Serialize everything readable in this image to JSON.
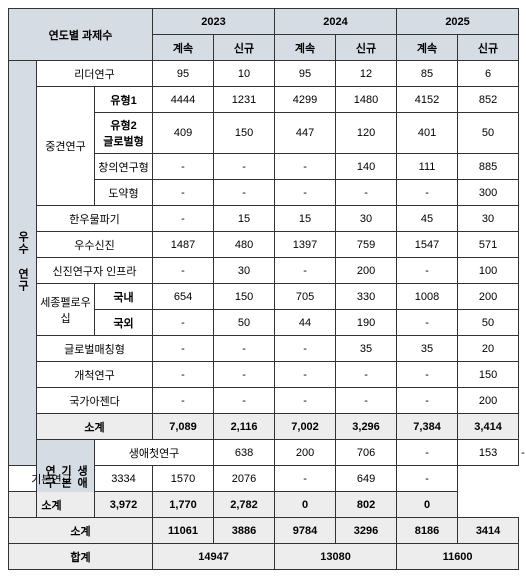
{
  "header": {
    "title": "연도별 과제수",
    "y2023": "2023",
    "y2024": "2024",
    "y2025": "2025",
    "cont": "계속",
    "new": "신규"
  },
  "cat": {
    "excellent": "우수\n연구",
    "life": "생애\n기본\n연구"
  },
  "rows": {
    "leader": {
      "label": "리더연구",
      "v": [
        "95",
        "10",
        "95",
        "12",
        "85",
        "6"
      ]
    },
    "mid": {
      "label": "중견연구"
    },
    "type1": {
      "label": "유형1",
      "v": [
        "4444",
        "1231",
        "4299",
        "1480",
        "4152",
        "852"
      ]
    },
    "type2": {
      "label": "유형2\n글로벌형",
      "v": [
        "409",
        "150",
        "447",
        "120",
        "401",
        "50"
      ]
    },
    "creative": {
      "label": "창의연구형",
      "v": [
        "-",
        "-",
        "-",
        "140",
        "111",
        "885"
      ]
    },
    "leap": {
      "label": "도약형",
      "v": [
        "-",
        "-",
        "-",
        "-",
        "-",
        "300"
      ]
    },
    "hanwoo": {
      "label": "한우물파기",
      "v": [
        "-",
        "15",
        "15",
        "30",
        "45",
        "30"
      ]
    },
    "newex": {
      "label": "우수신진",
      "v": [
        "1487",
        "480",
        "1397",
        "759",
        "1547",
        "571"
      ]
    },
    "infra": {
      "label": "신진연구자 인프라",
      "v": [
        "-",
        "30",
        "-",
        "200",
        "-",
        "100"
      ]
    },
    "sejong": {
      "label": "세종펠로우십"
    },
    "dom": {
      "label": "국내",
      "v": [
        "654",
        "150",
        "705",
        "330",
        "1008",
        "200"
      ]
    },
    "intl": {
      "label": "국외",
      "v": [
        "-",
        "50",
        "44",
        "190",
        "-",
        "50"
      ]
    },
    "global": {
      "label": "글로벌매칭형",
      "v": [
        "-",
        "-",
        "-",
        "35",
        "35",
        "20"
      ]
    },
    "pioneer": {
      "label": "개척연구",
      "v": [
        "-",
        "-",
        "-",
        "-",
        "-",
        "150"
      ]
    },
    "agenda": {
      "label": "국가아젠다",
      "v": [
        "-",
        "-",
        "-",
        "-",
        "-",
        "200"
      ]
    },
    "sub1": {
      "label": "소계",
      "v": [
        "7,089",
        "2,116",
        "7,002",
        "3,296",
        "7,384",
        "3,414"
      ]
    },
    "first": {
      "label": "생애첫연구",
      "v": [
        "638",
        "200",
        "706",
        "-",
        "153",
        "-"
      ]
    },
    "basic": {
      "label": "기본연구",
      "v": [
        "3334",
        "1570",
        "2076",
        "-",
        "649",
        "-"
      ]
    },
    "sub2": {
      "label": "소계",
      "v": [
        "3,972",
        "1,770",
        "2,782",
        "0",
        "802",
        "0"
      ]
    },
    "sub3": {
      "label": "소계",
      "v": [
        "11061",
        "3886",
        "9784",
        "3296",
        "8186",
        "3414"
      ]
    },
    "total": {
      "label": "합계",
      "v": [
        "14947",
        "13080",
        "11600"
      ]
    }
  },
  "style": {
    "header_bg": "#d6dce4",
    "sub_bg": "#ededed",
    "border": "#333333",
    "font_size": 11
  }
}
